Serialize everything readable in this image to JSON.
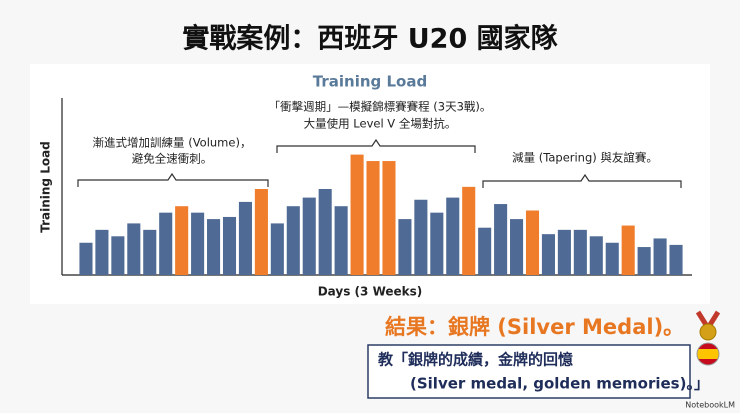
{
  "slide": {
    "title": "實戰案例：西班牙 U20 國家隊",
    "result": "結果：銀牌 (Silver Medal)。",
    "quote": [
      "教「銀牌的成績，金牌的回憶",
      "(Silver medal, golden memories)。」"
    ],
    "brand": "NotebookLM"
  },
  "chart_data": {
    "type": "bar",
    "title": "Training Load",
    "y_label": "Training Load",
    "x_label": "Days (3 Weeks)",
    "categories": [
      null,
      null,
      null,
      null,
      null,
      null,
      null,
      null,
      null,
      null,
      null,
      null,
      null,
      null,
      null,
      null,
      null,
      null,
      null,
      null,
      null,
      null,
      null,
      null,
      null,
      null,
      null,
      null,
      null,
      null,
      null,
      null,
      null,
      null,
      null,
      null,
      null,
      null
    ],
    "values": [
      15,
      21,
      18,
      24,
      21,
      29,
      32,
      29,
      26,
      27,
      34,
      40,
      24,
      32,
      36,
      40,
      32,
      56,
      53,
      53,
      26,
      35,
      29,
      36,
      41,
      22,
      33,
      26,
      30,
      19,
      21,
      21,
      18,
      15,
      23,
      13,
      17,
      14
    ],
    "colors": [
      "#4f6a94",
      "#4f6a94",
      "#4f6a94",
      "#4f6a94",
      "#4f6a94",
      "#4f6a94",
      "#ef7d2b",
      "#4f6a94",
      "#4f6a94",
      "#4f6a94",
      "#4f6a94",
      "#ef7d2b",
      "#4f6a94",
      "#4f6a94",
      "#4f6a94",
      "#4f6a94",
      "#4f6a94",
      "#ef7d2b",
      "#ef7d2b",
      "#ef7d2b",
      "#4f6a94",
      "#4f6a94",
      "#4f6a94",
      "#4f6a94",
      "#ef7d2b",
      "#4f6a94",
      "#4f6a94",
      "#4f6a94",
      "#ef7d2b",
      "#4f6a94",
      "#4f6a94",
      "#4f6a94",
      "#4f6a94",
      "#4f6a94",
      "#ef7d2b",
      "#4f6a94",
      "#4f6a94",
      "#4f6a94"
    ],
    "ylim": [
      0,
      100
    ],
    "annotations": [
      [
        "漸進式增加訓練量 (Volume)，",
        "避免全速衝刺。"
      ],
      [
        "「衝擊週期」—模擬錦標賽賽程 (3天3戰)。",
        "大量使用 Level V 全場對抗。"
      ],
      [
        "減量 (Tapering) 與友誼賽。"
      ]
    ]
  }
}
